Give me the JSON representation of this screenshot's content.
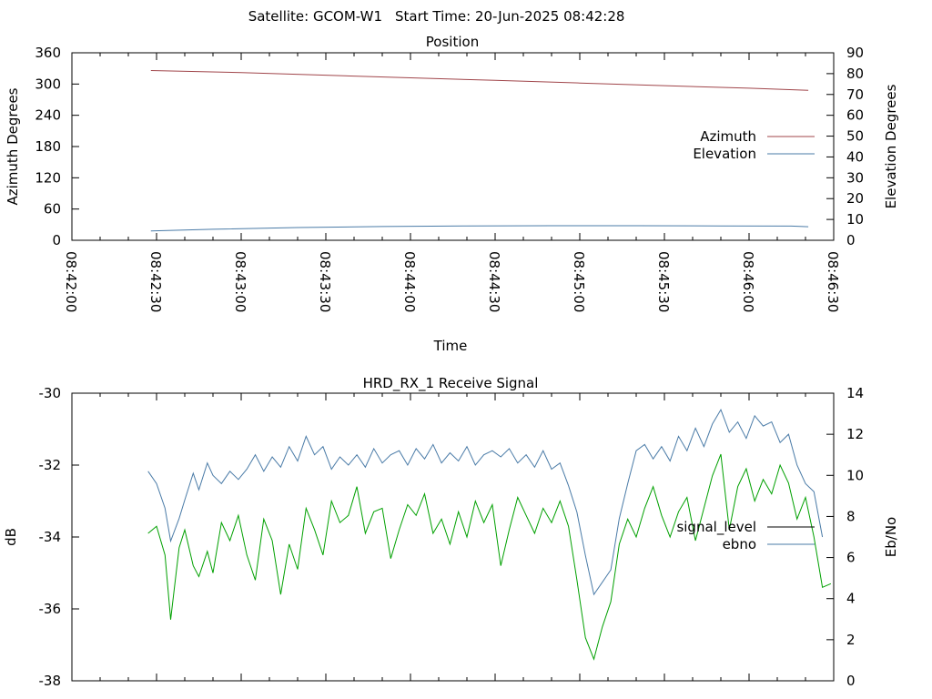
{
  "header": {
    "satellite_label": "Satellite: GCOM-W1",
    "start_time_label": "Start Time: 20-Jun-2025 08:42:28"
  },
  "chart_data": [
    {
      "type": "line",
      "title": "Position",
      "xlabel": "Time",
      "ylabel": "Azimuth Degrees",
      "y2label": "Elevation Degrees",
      "x_ticks": [
        "08:42:00",
        "08:42:30",
        "08:43:00",
        "08:43:30",
        "08:44:00",
        "08:44:30",
        "08:45:00",
        "08:45:30",
        "08:46:00",
        "08:46:30"
      ],
      "xlim_seconds": [
        0,
        270
      ],
      "ylim": [
        0,
        360
      ],
      "y_ticks": [
        0,
        60,
        120,
        180,
        240,
        300,
        360
      ],
      "y2lim": [
        0,
        90
      ],
      "y2_ticks": [
        0,
        10,
        20,
        30,
        40,
        50,
        60,
        70,
        80,
        90
      ],
      "legend": "right",
      "series": [
        {
          "name": "Azimuth",
          "axis": "y",
          "color": "#a0454a",
          "x_seconds": [
            28,
            60,
            90,
            120,
            150,
            180,
            210,
            240,
            261
          ],
          "values": [
            326,
            322,
            317,
            312,
            307,
            302,
            297,
            292,
            288
          ]
        },
        {
          "name": "Elevation",
          "axis": "y2",
          "color": "#4a7ba7",
          "x_seconds": [
            28,
            50,
            80,
            110,
            140,
            170,
            200,
            230,
            255,
            261
          ],
          "values": [
            4.5,
            5.3,
            6.1,
            6.6,
            6.9,
            7.0,
            7.0,
            6.9,
            6.8,
            6.5
          ]
        }
      ]
    },
    {
      "type": "line",
      "title": "HRD_RX_1 Receive Signal",
      "ylabel": "dB",
      "y2label": "Eb/No",
      "xlim_seconds": [
        0,
        270
      ],
      "ylim": [
        -38,
        -30
      ],
      "y_ticks": [
        -38,
        -36,
        -34,
        -32,
        -30
      ],
      "y2lim": [
        0,
        14
      ],
      "y2_ticks": [
        0,
        2,
        4,
        6,
        8,
        10,
        12,
        14
      ],
      "legend": "right",
      "series": [
        {
          "name": "signal_level",
          "axis": "y",
          "color": "#00a000",
          "x_seconds": [
            27,
            30,
            33,
            35,
            38,
            40,
            43,
            45,
            48,
            50,
            53,
            56,
            59,
            62,
            65,
            68,
            71,
            74,
            77,
            80,
            83,
            86,
            89,
            92,
            95,
            98,
            101,
            104,
            107,
            110,
            113,
            116,
            119,
            122,
            125,
            128,
            131,
            134,
            137,
            140,
            143,
            146,
            149,
            152,
            155,
            158,
            161,
            164,
            167,
            170,
            173,
            176,
            179,
            182,
            185,
            188,
            191,
            194,
            197,
            200,
            203,
            206,
            209,
            212,
            215,
            218,
            221,
            224,
            227,
            230,
            233,
            236,
            239,
            242,
            245,
            248,
            251,
            254,
            257,
            260,
            263,
            266,
            269
          ],
          "values": [
            -33.9,
            -33.7,
            -34.5,
            -36.3,
            -34.3,
            -33.8,
            -34.8,
            -35.1,
            -34.4,
            -35.0,
            -33.6,
            -34.1,
            -33.4,
            -34.5,
            -35.2,
            -33.5,
            -34.1,
            -35.6,
            -34.2,
            -34.9,
            -33.2,
            -33.8,
            -34.5,
            -33.0,
            -33.6,
            -33.4,
            -32.6,
            -33.9,
            -33.3,
            -33.2,
            -34.6,
            -33.8,
            -33.1,
            -33.4,
            -32.8,
            -33.9,
            -33.5,
            -34.2,
            -33.3,
            -34.0,
            -33.0,
            -33.6,
            -33.1,
            -34.8,
            -33.8,
            -32.9,
            -33.4,
            -33.9,
            -33.2,
            -33.6,
            -33.0,
            -33.7,
            -35.2,
            -36.8,
            -37.4,
            -36.5,
            -35.8,
            -34.2,
            -33.5,
            -34.0,
            -33.2,
            -32.6,
            -33.4,
            -34.0,
            -33.3,
            -32.9,
            -34.1,
            -33.2,
            -32.3,
            -31.7,
            -33.8,
            -32.6,
            -32.1,
            -33.0,
            -32.4,
            -32.8,
            -32.0,
            -32.5,
            -33.5,
            -32.9,
            -34.0,
            -35.4,
            -35.3
          ]
        },
        {
          "name": "ebno",
          "axis": "y2",
          "color": "#4a7ba7",
          "x_seconds": [
            27,
            30,
            33,
            35,
            38,
            40,
            43,
            45,
            48,
            50,
            53,
            56,
            59,
            62,
            65,
            68,
            71,
            74,
            77,
            80,
            83,
            86,
            89,
            92,
            95,
            98,
            101,
            104,
            107,
            110,
            113,
            116,
            119,
            122,
            125,
            128,
            131,
            134,
            137,
            140,
            143,
            146,
            149,
            152,
            155,
            158,
            161,
            164,
            167,
            170,
            173,
            176,
            179,
            182,
            185,
            188,
            191,
            194,
            197,
            200,
            203,
            206,
            209,
            212,
            215,
            218,
            221,
            224,
            227,
            230,
            233,
            236,
            239,
            242,
            245,
            248,
            251,
            254,
            257,
            260,
            263,
            266
          ],
          "values": [
            10.2,
            9.6,
            8.4,
            6.8,
            7.9,
            8.8,
            10.1,
            9.3,
            10.6,
            10.0,
            9.6,
            10.2,
            9.8,
            10.3,
            11.0,
            10.2,
            10.9,
            10.4,
            11.4,
            10.7,
            11.9,
            11.0,
            11.4,
            10.3,
            10.9,
            10.5,
            11.0,
            10.4,
            11.3,
            10.6,
            11.0,
            11.2,
            10.5,
            11.3,
            10.8,
            11.5,
            10.6,
            11.1,
            10.7,
            11.4,
            10.5,
            11.0,
            11.2,
            10.9,
            11.3,
            10.6,
            11.0,
            10.4,
            11.2,
            10.3,
            10.6,
            9.5,
            8.2,
            6.1,
            4.2,
            4.8,
            5.4,
            7.9,
            9.6,
            11.2,
            11.5,
            10.8,
            11.4,
            10.7,
            11.9,
            11.2,
            12.3,
            11.4,
            12.5,
            13.2,
            12.1,
            12.6,
            11.8,
            12.9,
            12.4,
            12.6,
            11.6,
            12.0,
            10.5,
            9.6,
            9.2,
            7.0
          ]
        }
      ]
    }
  ]
}
